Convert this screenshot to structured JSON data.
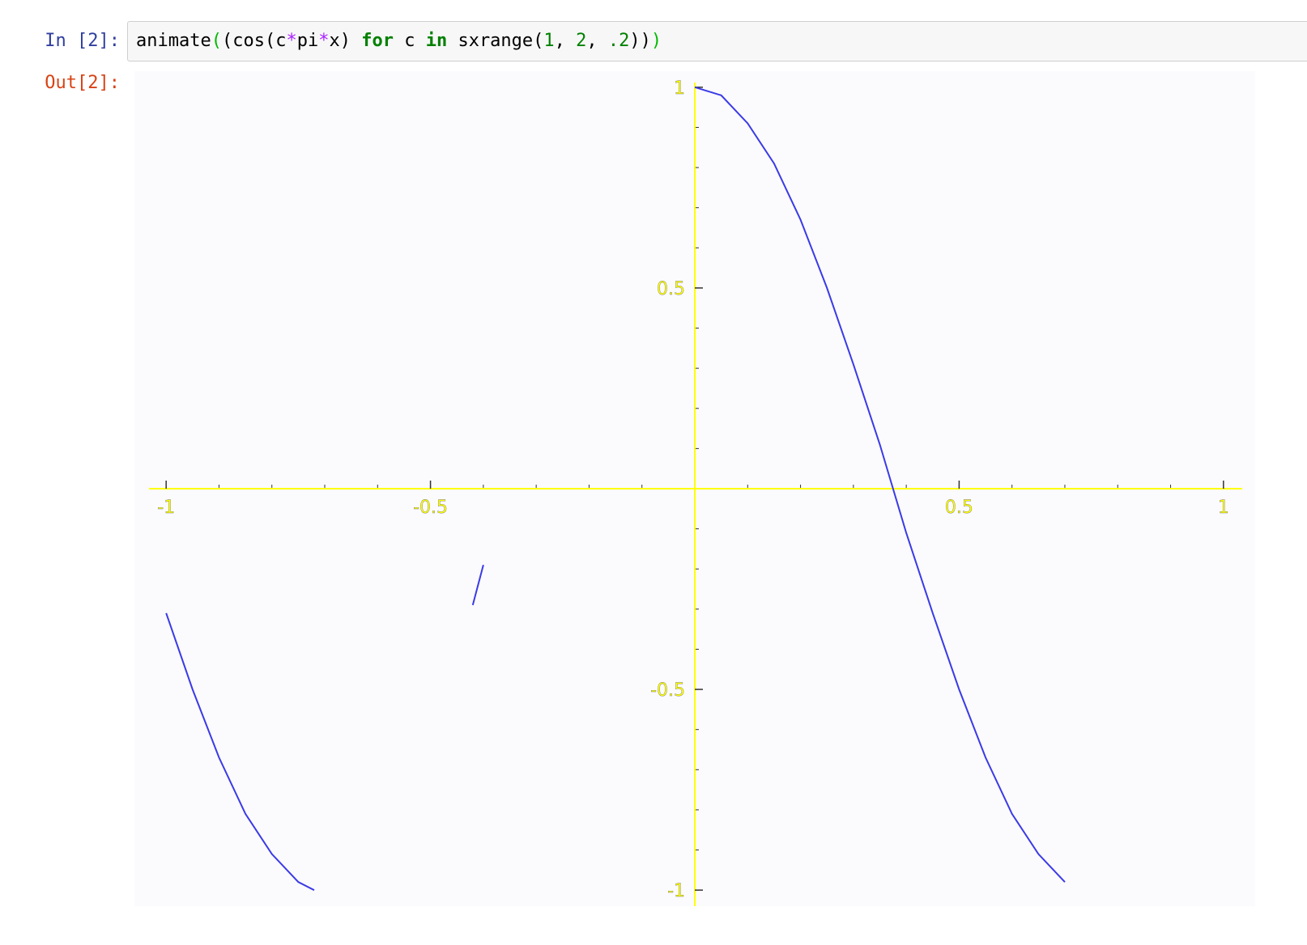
{
  "notebook": {
    "input_prompt": "In [2]:",
    "output_prompt": "Out[2]:",
    "code": {
      "t1": "animate",
      "t2": "(",
      "t3": "(cos(c",
      "t4": "*",
      "t5": "pi",
      "t6": "*",
      "t7": "x) ",
      "t8": "for",
      "t9": " c ",
      "t10": "in",
      "t11": " sxrange(",
      "t12": "1",
      "t13": ", ",
      "t14": "2",
      "t15": ", ",
      "t16": ".2",
      "t17": "))",
      "t18": ")"
    }
  },
  "chart_data": {
    "type": "line",
    "title": "",
    "xlabel": "",
    "ylabel": "",
    "xlim": [
      -1.06,
      1.06
    ],
    "ylim": [
      -1.04,
      1.04
    ],
    "x_ticks": [
      {
        "value": -1,
        "label": "-1"
      },
      {
        "value": -0.5,
        "label": "-0.5"
      },
      {
        "value": 0.5,
        "label": "0.5"
      },
      {
        "value": 1,
        "label": "1"
      }
    ],
    "y_ticks": [
      {
        "value": 1,
        "label": "1"
      },
      {
        "value": 0.5,
        "label": "0.5"
      },
      {
        "value": -0.5,
        "label": "-0.5"
      },
      {
        "value": -1,
        "label": "-1"
      }
    ],
    "axis_color": "#ffff00",
    "line_color": "#3a3ae6",
    "series": [
      {
        "x": [
          0,
          0.05,
          0.1,
          0.15,
          0.2,
          0.25,
          0.3,
          0.35,
          0.4,
          0.45,
          0.5,
          0.55,
          0.6,
          0.65,
          0.7
        ],
        "y": [
          1.0,
          0.98,
          0.91,
          0.81,
          0.67,
          0.5,
          0.31,
          0.11,
          -0.11,
          -0.31,
          -0.5,
          -0.67,
          -0.81,
          -0.91,
          -0.98
        ]
      },
      {
        "x": [
          -1.0,
          -0.95,
          -0.9,
          -0.85,
          -0.8,
          -0.75,
          -0.72
        ],
        "y": [
          -0.31,
          -0.5,
          -0.67,
          -0.81,
          -0.91,
          -0.98,
          -1.0
        ]
      },
      {
        "x": [
          -0.42,
          -0.4
        ],
        "y": [
          -0.29,
          -0.19
        ]
      }
    ]
  }
}
